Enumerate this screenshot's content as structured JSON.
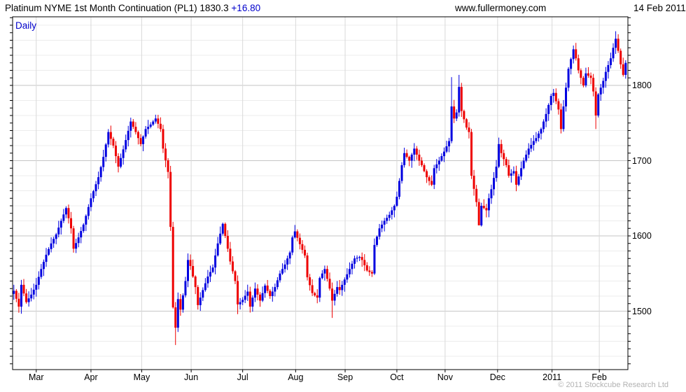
{
  "header": {
    "title_prefix": "Platinum NYME 1st Month Continuation (PL1) 1830.3 ",
    "change": "+16.80",
    "site": "www.fullermoney.com",
    "date": "14 Feb 2011"
  },
  "chart_label": "Daily",
  "footer": {
    "copyright": "© 2011 Stockcube Research Ltd"
  },
  "colors": {
    "up": "#0000e0",
    "down": "#ee0000",
    "accent_blue": "#0000cc",
    "grid_minor": "#ececec",
    "grid_major": "#c6c6c6",
    "grid_month": "#d9d9d9",
    "border": "#000000",
    "copyright_gray": "#b2b2b2"
  },
  "chart_data": {
    "type": "candlestick",
    "title": "Platinum NYME 1st Month Continuation (PL1)",
    "period": "Daily",
    "last_price": 1830.3,
    "change": 16.8,
    "y_axis": {
      "side": "right",
      "labels": [
        1500,
        1600,
        1700,
        1800
      ],
      "minor_grid_step": 20,
      "tick_step": 10,
      "visible_range": [
        1421,
        1891
      ]
    },
    "x_axis": {
      "months": [
        {
          "label": "Mar",
          "index": 9
        },
        {
          "label": "Apr",
          "index": 31
        },
        {
          "label": "May",
          "index": 51.4
        },
        {
          "label": "Jun",
          "index": 71.3
        },
        {
          "label": "Jul",
          "index": 92
        },
        {
          "label": "Aug",
          "index": 113.3
        },
        {
          "label": "Sep",
          "index": 133.2
        },
        {
          "label": "Oct",
          "index": 154
        },
        {
          "label": "Nov",
          "index": 173.4
        },
        {
          "label": "Dec",
          "index": 194.5
        },
        {
          "label": "2011",
          "index": 216.4
        },
        {
          "label": "Feb",
          "index": 235.4
        }
      ]
    },
    "candle_count": 247,
    "close_anchors": [
      [
        0,
        1527
      ],
      [
        2,
        1506
      ],
      [
        3,
        1535
      ],
      [
        5,
        1512
      ],
      [
        7,
        1522
      ],
      [
        9,
        1535
      ],
      [
        11,
        1556
      ],
      [
        13,
        1575
      ],
      [
        15,
        1590
      ],
      [
        17,
        1602
      ],
      [
        19,
        1620
      ],
      [
        21,
        1637
      ],
      [
        23,
        1610
      ],
      [
        24,
        1583
      ],
      [
        26,
        1598
      ],
      [
        28,
        1615
      ],
      [
        31,
        1650
      ],
      [
        34,
        1678
      ],
      [
        36,
        1705
      ],
      [
        38,
        1738
      ],
      [
        40,
        1720
      ],
      [
        42,
        1692
      ],
      [
        44,
        1715
      ],
      [
        47,
        1752
      ],
      [
        49,
        1738
      ],
      [
        51,
        1722
      ],
      [
        53,
        1742
      ],
      [
        55,
        1748
      ],
      [
        57,
        1756
      ],
      [
        59,
        1742
      ],
      [
        60,
        1716
      ],
      [
        62,
        1685
      ],
      [
        63,
        1612
      ],
      [
        64,
        1505
      ],
      [
        65,
        1478
      ],
      [
        66,
        1516
      ],
      [
        67,
        1502
      ],
      [
        69,
        1540
      ],
      [
        70,
        1568
      ],
      [
        71,
        1560
      ],
      [
        73,
        1532
      ],
      [
        74,
        1508
      ],
      [
        76,
        1528
      ],
      [
        78,
        1546
      ],
      [
        80,
        1558
      ],
      [
        82,
        1590
      ],
      [
        84,
        1616
      ],
      [
        85,
        1600
      ],
      [
        87,
        1566
      ],
      [
        89,
        1540
      ],
      [
        90,
        1509
      ],
      [
        92,
        1515
      ],
      [
        94,
        1526
      ],
      [
        95,
        1506
      ],
      [
        97,
        1530
      ],
      [
        99,
        1514
      ],
      [
        101,
        1534
      ],
      [
        103,
        1520
      ],
      [
        105,
        1532
      ],
      [
        107,
        1550
      ],
      [
        109,
        1562
      ],
      [
        111,
        1578
      ],
      [
        112,
        1598
      ],
      [
        113,
        1606
      ],
      [
        115,
        1589
      ],
      [
        117,
        1574
      ],
      [
        118,
        1545
      ],
      [
        120,
        1524
      ],
      [
        122,
        1518
      ],
      [
        123,
        1544
      ],
      [
        125,
        1556
      ],
      [
        127,
        1530
      ],
      [
        128,
        1514
      ],
      [
        130,
        1532
      ],
      [
        131,
        1528
      ],
      [
        133,
        1542
      ],
      [
        135,
        1556
      ],
      [
        137,
        1570
      ],
      [
        139,
        1572
      ],
      [
        140,
        1568
      ],
      [
        142,
        1554
      ],
      [
        144,
        1550
      ],
      [
        145,
        1588
      ],
      [
        147,
        1610
      ],
      [
        149,
        1620
      ],
      [
        151,
        1628
      ],
      [
        153,
        1640
      ],
      [
        154,
        1652
      ],
      [
        156,
        1694
      ],
      [
        157,
        1710
      ],
      [
        159,
        1700
      ],
      [
        161,
        1716
      ],
      [
        163,
        1700
      ],
      [
        164,
        1694
      ],
      [
        166,
        1678
      ],
      [
        168,
        1668
      ],
      [
        169,
        1690
      ],
      [
        171,
        1700
      ],
      [
        173,
        1712
      ],
      [
        175,
        1726
      ],
      [
        176,
        1772
      ],
      [
        177,
        1756
      ],
      [
        178,
        1764
      ],
      [
        179,
        1798
      ],
      [
        180,
        1766
      ],
      [
        182,
        1744
      ],
      [
        183,
        1738
      ],
      [
        184,
        1680
      ],
      [
        186,
        1645
      ],
      [
        187,
        1614
      ],
      [
        188,
        1640
      ],
      [
        190,
        1634
      ],
      [
        191,
        1650
      ],
      [
        192,
        1662
      ],
      [
        194,
        1692
      ],
      [
        195,
        1722
      ],
      [
        196,
        1710
      ],
      [
        198,
        1694
      ],
      [
        199,
        1680
      ],
      [
        201,
        1686
      ],
      [
        202,
        1668
      ],
      [
        204,
        1690
      ],
      [
        205,
        1700
      ],
      [
        207,
        1716
      ],
      [
        209,
        1726
      ],
      [
        210,
        1730
      ],
      [
        212,
        1742
      ],
      [
        214,
        1762
      ],
      [
        216,
        1786
      ],
      [
        217,
        1790
      ],
      [
        219,
        1768
      ],
      [
        220,
        1742
      ],
      [
        221,
        1772
      ],
      [
        223,
        1822
      ],
      [
        225,
        1848
      ],
      [
        226,
        1836
      ],
      [
        227,
        1820
      ],
      [
        229,
        1800
      ],
      [
        230,
        1816
      ],
      [
        232,
        1810
      ],
      [
        233,
        1792
      ],
      [
        234,
        1760
      ],
      [
        235,
        1788
      ],
      [
        237,
        1806
      ],
      [
        238,
        1818
      ],
      [
        240,
        1836
      ],
      [
        241,
        1850
      ],
      [
        242,
        1862
      ],
      [
        243,
        1846
      ],
      [
        244,
        1828
      ],
      [
        245,
        1814
      ],
      [
        246,
        1830
      ]
    ],
    "wick_overrides": [
      {
        "i": 65,
        "low": 1455
      },
      {
        "i": 90,
        "low": 1496
      },
      {
        "i": 128,
        "low": 1491
      },
      {
        "i": 176,
        "high": 1811
      },
      {
        "i": 179,
        "high": 1814
      },
      {
        "i": 187,
        "low": 1629
      },
      {
        "i": 225,
        "high": 1853
      },
      {
        "i": 234,
        "low": 1742
      },
      {
        "i": 242,
        "high": 1872
      }
    ]
  }
}
